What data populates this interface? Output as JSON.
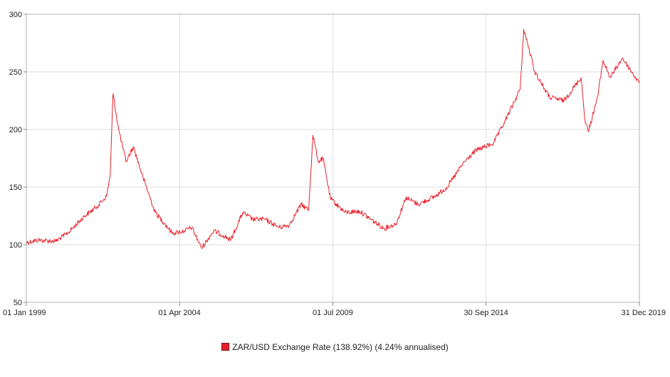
{
  "chart_data": {
    "type": "line",
    "title": "",
    "xlabel": "",
    "ylabel": "",
    "x_range": [
      "1999-01-01",
      "2019-12-31"
    ],
    "ylim": [
      50,
      300
    ],
    "grid": true,
    "legend_position": "bottom-center",
    "y_ticks": [
      "50",
      "100",
      "150",
      "200",
      "250",
      "300"
    ],
    "x_ticks": [
      {
        "label": "01 Jan 1999",
        "date": "1999-01-01"
      },
      {
        "label": "01 Apr 2004",
        "date": "2004-04-01"
      },
      {
        "label": "01 Jul 2009",
        "date": "2009-07-01"
      },
      {
        "label": "30 Sep 2014",
        "date": "2014-09-30"
      },
      {
        "label": "31 Dec 2019",
        "date": "2019-12-31"
      }
    ],
    "series": [
      {
        "name": "ZAR/USD Exchange Rate (138.92%) (4.24% annualised)",
        "color": "#e8212b",
        "points": [
          [
            "1999-01-01",
            102
          ],
          [
            "1999-06-01",
            104
          ],
          [
            "2000-01-01",
            103
          ],
          [
            "2000-06-01",
            110
          ],
          [
            "2001-01-01",
            125
          ],
          [
            "2001-06-01",
            133
          ],
          [
            "2001-10-01",
            142
          ],
          [
            "2001-11-15",
            160
          ],
          [
            "2001-12-20",
            231
          ],
          [
            "2002-03-01",
            200
          ],
          [
            "2002-06-01",
            172
          ],
          [
            "2002-09-01",
            185
          ],
          [
            "2003-01-01",
            158
          ],
          [
            "2003-06-01",
            128
          ],
          [
            "2003-10-01",
            118
          ],
          [
            "2004-01-01",
            110
          ],
          [
            "2004-06-01",
            112
          ],
          [
            "2004-09-01",
            115
          ],
          [
            "2005-01-01",
            97
          ],
          [
            "2005-06-01",
            112
          ],
          [
            "2005-10-01",
            108
          ],
          [
            "2006-01-01",
            104
          ],
          [
            "2006-06-01",
            128
          ],
          [
            "2006-10-01",
            122
          ],
          [
            "2007-03-01",
            122
          ],
          [
            "2007-09-01",
            115
          ],
          [
            "2008-01-01",
            117
          ],
          [
            "2008-06-01",
            135
          ],
          [
            "2008-09-01",
            130
          ],
          [
            "2008-10-25",
            195
          ],
          [
            "2009-01-01",
            172
          ],
          [
            "2009-03-01",
            175
          ],
          [
            "2009-06-01",
            140
          ],
          [
            "2009-12-01",
            128
          ],
          [
            "2010-06-01",
            129
          ],
          [
            "2010-12-01",
            120
          ],
          [
            "2011-04-01",
            114
          ],
          [
            "2011-09-01",
            118
          ],
          [
            "2012-01-01",
            141
          ],
          [
            "2012-06-01",
            135
          ],
          [
            "2013-01-01",
            142
          ],
          [
            "2013-06-01",
            150
          ],
          [
            "2014-01-01",
            172
          ],
          [
            "2014-06-01",
            182
          ],
          [
            "2015-01-01",
            188
          ],
          [
            "2015-06-01",
            208
          ],
          [
            "2015-12-01",
            235
          ],
          [
            "2016-01-15",
            287
          ],
          [
            "2016-06-01",
            250
          ],
          [
            "2016-12-01",
            228
          ],
          [
            "2017-06-01",
            225
          ],
          [
            "2018-01-01",
            245
          ],
          [
            "2018-02-15",
            210
          ],
          [
            "2018-04-01",
            198
          ],
          [
            "2018-08-01",
            230
          ],
          [
            "2018-10-01",
            260
          ],
          [
            "2019-01-01",
            245
          ],
          [
            "2019-06-01",
            262
          ],
          [
            "2019-12-31",
            240
          ]
        ]
      }
    ]
  },
  "legend": {
    "label": "ZAR/USD Exchange Rate (138.92%) (4.24% annualised)",
    "color": "#e8212b"
  }
}
